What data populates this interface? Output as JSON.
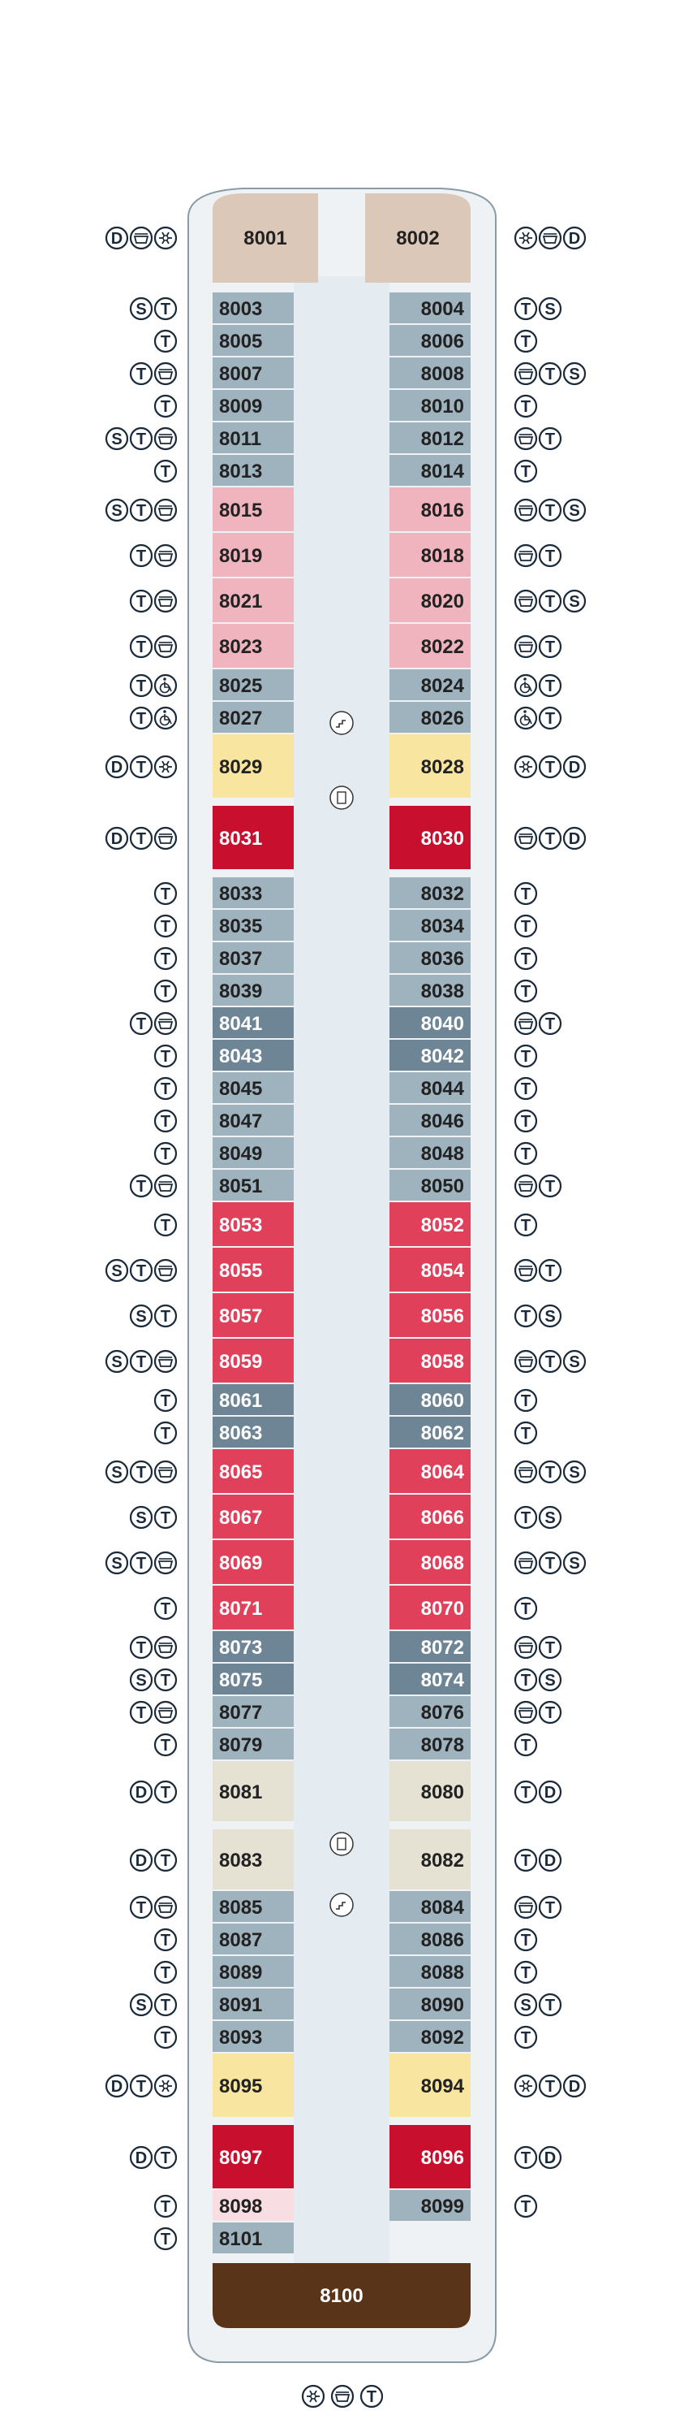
{
  "colors": {
    "gray": "#9fb3bf",
    "darkgray": "#6e8596",
    "pink": "#efb4be",
    "red": "#e0405a",
    "darkred": "#c8102e",
    "yellow": "#f8e6a0",
    "beige": "#e6e2d3",
    "tan": "#dcc8b8",
    "brown": "#5a3418",
    "lightpink": "#f8dde2",
    "corridor": "#e4ebf1",
    "hull": "#eef2f5",
    "hull_stroke": "#8a9ba8",
    "icon_stroke": "#1a2a3a"
  },
  "icon_legend": {
    "D": "D",
    "S": "S",
    "T": "T"
  },
  "bottom_icons": [
    "spa-icon",
    "bath-icon",
    "T"
  ],
  "cabins_top": [
    {
      "num": "8001",
      "side": "L",
      "color": "tan",
      "icons": [
        "D",
        "bath-icon",
        "spa-icon"
      ]
    },
    {
      "num": "8002",
      "side": "R",
      "color": "tan",
      "icons": [
        "spa-icon",
        "bath-icon",
        "D"
      ]
    }
  ],
  "rows": [
    {
      "L": {
        "num": "8003",
        "color": "gray",
        "icons": [
          "S",
          "T"
        ]
      },
      "R": {
        "num": "8004",
        "color": "gray",
        "icons": [
          "T",
          "S"
        ]
      }
    },
    {
      "L": {
        "num": "8005",
        "color": "gray",
        "icons": [
          "T"
        ]
      },
      "R": {
        "num": "8006",
        "color": "gray",
        "icons": [
          "T"
        ]
      }
    },
    {
      "L": {
        "num": "8007",
        "color": "gray",
        "icons": [
          "T",
          "bath-icon"
        ]
      },
      "R": {
        "num": "8008",
        "color": "gray",
        "icons": [
          "bath-icon",
          "T",
          "S"
        ]
      }
    },
    {
      "L": {
        "num": "8009",
        "color": "gray",
        "icons": [
          "T"
        ]
      },
      "R": {
        "num": "8010",
        "color": "gray",
        "icons": [
          "T"
        ]
      }
    },
    {
      "L": {
        "num": "8011",
        "color": "gray",
        "icons": [
          "S",
          "T",
          "bath-icon"
        ]
      },
      "R": {
        "num": "8012",
        "color": "gray",
        "icons": [
          "bath-icon",
          "T"
        ]
      }
    },
    {
      "L": {
        "num": "8013",
        "color": "gray",
        "icons": [
          "T"
        ]
      },
      "R": {
        "num": "8014",
        "color": "gray",
        "icons": [
          "T"
        ]
      }
    },
    {
      "L": {
        "num": "8015",
        "color": "pink",
        "icons": [
          "S",
          "T",
          "bath-icon"
        ]
      },
      "R": {
        "num": "8016",
        "color": "pink",
        "icons": [
          "bath-icon",
          "T",
          "S"
        ]
      }
    },
    {
      "L": {
        "num": "8019",
        "color": "pink",
        "icons": [
          "T",
          "bath-icon"
        ]
      },
      "R": {
        "num": "8018",
        "color": "pink",
        "icons": [
          "bath-icon",
          "T"
        ]
      }
    },
    {
      "L": {
        "num": "8021",
        "color": "pink",
        "icons": [
          "T",
          "bath-icon"
        ]
      },
      "R": {
        "num": "8020",
        "color": "pink",
        "icons": [
          "bath-icon",
          "T",
          "S"
        ]
      }
    },
    {
      "L": {
        "num": "8023",
        "color": "pink",
        "icons": [
          "T",
          "bath-icon"
        ]
      },
      "R": {
        "num": "8022",
        "color": "pink",
        "icons": [
          "bath-icon",
          "T"
        ]
      }
    },
    {
      "L": {
        "num": "8025",
        "color": "gray",
        "icons": [
          "T",
          "wheelchair-icon"
        ]
      },
      "R": {
        "num": "8024",
        "color": "gray",
        "icons": [
          "wheelchair-icon",
          "T"
        ]
      }
    },
    {
      "L": {
        "num": "8027",
        "color": "gray",
        "icons": [
          "T",
          "wheelchair-icon"
        ]
      },
      "R": {
        "num": "8026",
        "color": "gray",
        "icons": [
          "wheelchair-icon",
          "T"
        ]
      }
    },
    {
      "L": {
        "num": "8029",
        "color": "yellow",
        "icons": [
          "D",
          "T",
          "spa-icon"
        ]
      },
      "R": {
        "num": "8028",
        "color": "yellow",
        "icons": [
          "spa-icon",
          "T",
          "D"
        ]
      }
    },
    {
      "L": {
        "num": "8031",
        "color": "darkred",
        "icons": [
          "D",
          "T",
          "bath-icon"
        ]
      },
      "R": {
        "num": "8030",
        "color": "darkred",
        "icons": [
          "bath-icon",
          "T",
          "D"
        ]
      }
    },
    {
      "L": {
        "num": "8033",
        "color": "gray",
        "icons": [
          "T"
        ]
      },
      "R": {
        "num": "8032",
        "color": "gray",
        "icons": [
          "T"
        ]
      }
    },
    {
      "L": {
        "num": "8035",
        "color": "gray",
        "icons": [
          "T"
        ]
      },
      "R": {
        "num": "8034",
        "color": "gray",
        "icons": [
          "T"
        ]
      }
    },
    {
      "L": {
        "num": "8037",
        "color": "gray",
        "icons": [
          "T"
        ]
      },
      "R": {
        "num": "8036",
        "color": "gray",
        "icons": [
          "T"
        ]
      }
    },
    {
      "L": {
        "num": "8039",
        "color": "gray",
        "icons": [
          "T"
        ]
      },
      "R": {
        "num": "8038",
        "color": "gray",
        "icons": [
          "T"
        ]
      }
    },
    {
      "L": {
        "num": "8041",
        "color": "darkgray",
        "icons": [
          "T",
          "bath-icon"
        ]
      },
      "R": {
        "num": "8040",
        "color": "darkgray",
        "icons": [
          "bath-icon",
          "T"
        ]
      }
    },
    {
      "L": {
        "num": "8043",
        "color": "darkgray",
        "icons": [
          "T"
        ]
      },
      "R": {
        "num": "8042",
        "color": "darkgray",
        "icons": [
          "T"
        ]
      }
    },
    {
      "L": {
        "num": "8045",
        "color": "gray",
        "icons": [
          "T"
        ]
      },
      "R": {
        "num": "8044",
        "color": "gray",
        "icons": [
          "T"
        ]
      }
    },
    {
      "L": {
        "num": "8047",
        "color": "gray",
        "icons": [
          "T"
        ]
      },
      "R": {
        "num": "8046",
        "color": "gray",
        "icons": [
          "T"
        ]
      }
    },
    {
      "L": {
        "num": "8049",
        "color": "gray",
        "icons": [
          "T"
        ]
      },
      "R": {
        "num": "8048",
        "color": "gray",
        "icons": [
          "T"
        ]
      }
    },
    {
      "L": {
        "num": "8051",
        "color": "gray",
        "icons": [
          "T",
          "bath-icon"
        ]
      },
      "R": {
        "num": "8050",
        "color": "gray",
        "icons": [
          "bath-icon",
          "T"
        ]
      }
    },
    {
      "L": {
        "num": "8053",
        "color": "red",
        "icons": [
          "T"
        ]
      },
      "R": {
        "num": "8052",
        "color": "red",
        "icons": [
          "T"
        ]
      }
    },
    {
      "L": {
        "num": "8055",
        "color": "red",
        "icons": [
          "S",
          "T",
          "bath-icon"
        ]
      },
      "R": {
        "num": "8054",
        "color": "red",
        "icons": [
          "bath-icon",
          "T"
        ]
      }
    },
    {
      "L": {
        "num": "8057",
        "color": "red",
        "icons": [
          "S",
          "T"
        ]
      },
      "R": {
        "num": "8056",
        "color": "red",
        "icons": [
          "T",
          "S"
        ]
      }
    },
    {
      "L": {
        "num": "8059",
        "color": "red",
        "icons": [
          "S",
          "T",
          "bath-icon"
        ]
      },
      "R": {
        "num": "8058",
        "color": "red",
        "icons": [
          "bath-icon",
          "T",
          "S"
        ]
      }
    },
    {
      "L": {
        "num": "8061",
        "color": "darkgray",
        "icons": [
          "T"
        ]
      },
      "R": {
        "num": "8060",
        "color": "darkgray",
        "icons": [
          "T"
        ]
      }
    },
    {
      "L": {
        "num": "8063",
        "color": "darkgray",
        "icons": [
          "T"
        ]
      },
      "R": {
        "num": "8062",
        "color": "darkgray",
        "icons": [
          "T"
        ]
      }
    },
    {
      "L": {
        "num": "8065",
        "color": "red",
        "icons": [
          "S",
          "T",
          "bath-icon"
        ]
      },
      "R": {
        "num": "8064",
        "color": "red",
        "icons": [
          "bath-icon",
          "T",
          "S"
        ]
      }
    },
    {
      "L": {
        "num": "8067",
        "color": "red",
        "icons": [
          "S",
          "T"
        ]
      },
      "R": {
        "num": "8066",
        "color": "red",
        "icons": [
          "T",
          "S"
        ]
      }
    },
    {
      "L": {
        "num": "8069",
        "color": "red",
        "icons": [
          "S",
          "T",
          "bath-icon"
        ]
      },
      "R": {
        "num": "8068",
        "color": "red",
        "icons": [
          "bath-icon",
          "T",
          "S"
        ]
      }
    },
    {
      "L": {
        "num": "8071",
        "color": "red",
        "icons": [
          "T"
        ]
      },
      "R": {
        "num": "8070",
        "color": "red",
        "icons": [
          "T"
        ]
      }
    },
    {
      "L": {
        "num": "8073",
        "color": "darkgray",
        "icons": [
          "T",
          "bath-icon"
        ]
      },
      "R": {
        "num": "8072",
        "color": "darkgray",
        "icons": [
          "bath-icon",
          "T"
        ]
      }
    },
    {
      "L": {
        "num": "8075",
        "color": "darkgray",
        "icons": [
          "S",
          "T"
        ]
      },
      "R": {
        "num": "8074",
        "color": "darkgray",
        "icons": [
          "T",
          "S"
        ]
      }
    },
    {
      "L": {
        "num": "8077",
        "color": "gray",
        "icons": [
          "T",
          "bath-icon"
        ]
      },
      "R": {
        "num": "8076",
        "color": "gray",
        "icons": [
          "bath-icon",
          "T"
        ]
      }
    },
    {
      "L": {
        "num": "8079",
        "color": "gray",
        "icons": [
          "T"
        ]
      },
      "R": {
        "num": "8078",
        "color": "gray",
        "icons": [
          "T"
        ]
      }
    },
    {
      "L": {
        "num": "8081",
        "color": "beige",
        "icons": [
          "D",
          "T"
        ]
      },
      "R": {
        "num": "8080",
        "color": "beige",
        "icons": [
          "T",
          "D"
        ]
      }
    },
    {
      "L": {
        "num": "8083",
        "color": "beige",
        "icons": [
          "D",
          "T"
        ]
      },
      "R": {
        "num": "8082",
        "color": "beige",
        "icons": [
          "T",
          "D"
        ]
      }
    },
    {
      "L": {
        "num": "8085",
        "color": "gray",
        "icons": [
          "T",
          "bath-icon"
        ]
      },
      "R": {
        "num": "8084",
        "color": "gray",
        "icons": [
          "bath-icon",
          "T"
        ]
      }
    },
    {
      "L": {
        "num": "8087",
        "color": "gray",
        "icons": [
          "T"
        ]
      },
      "R": {
        "num": "8086",
        "color": "gray",
        "icons": [
          "T"
        ]
      }
    },
    {
      "L": {
        "num": "8089",
        "color": "gray",
        "icons": [
          "T"
        ]
      },
      "R": {
        "num": "8088",
        "color": "gray",
        "icons": [
          "T"
        ]
      }
    },
    {
      "L": {
        "num": "8091",
        "color": "gray",
        "icons": [
          "S",
          "T"
        ]
      },
      "R": {
        "num": "8090",
        "color": "gray",
        "icons": [
          "S",
          "T"
        ]
      }
    },
    {
      "L": {
        "num": "8093",
        "color": "gray",
        "icons": [
          "T"
        ]
      },
      "R": {
        "num": "8092",
        "color": "gray",
        "icons": [
          "T"
        ]
      }
    },
    {
      "L": {
        "num": "8095",
        "color": "yellow",
        "icons": [
          "D",
          "T",
          "spa-icon"
        ]
      },
      "R": {
        "num": "8094",
        "color": "yellow",
        "icons": [
          "spa-icon",
          "T",
          "D"
        ]
      }
    },
    {
      "L": {
        "num": "8097",
        "color": "darkred",
        "icons": [
          "D",
          "T"
        ]
      },
      "R": {
        "num": "8096",
        "color": "darkred",
        "icons": [
          "T",
          "D"
        ]
      }
    },
    {
      "L": {
        "num": "8098",
        "color": "lightpink",
        "icons": [
          "T"
        ]
      },
      "R": {
        "num": "8099",
        "color": "gray",
        "icons": [
          "T"
        ]
      }
    },
    {
      "L": {
        "num": "8101",
        "color": "gray",
        "icons": [
          "T"
        ]
      },
      "R": null
    }
  ],
  "cabin_bottom": {
    "num": "8100",
    "color": "brown"
  }
}
